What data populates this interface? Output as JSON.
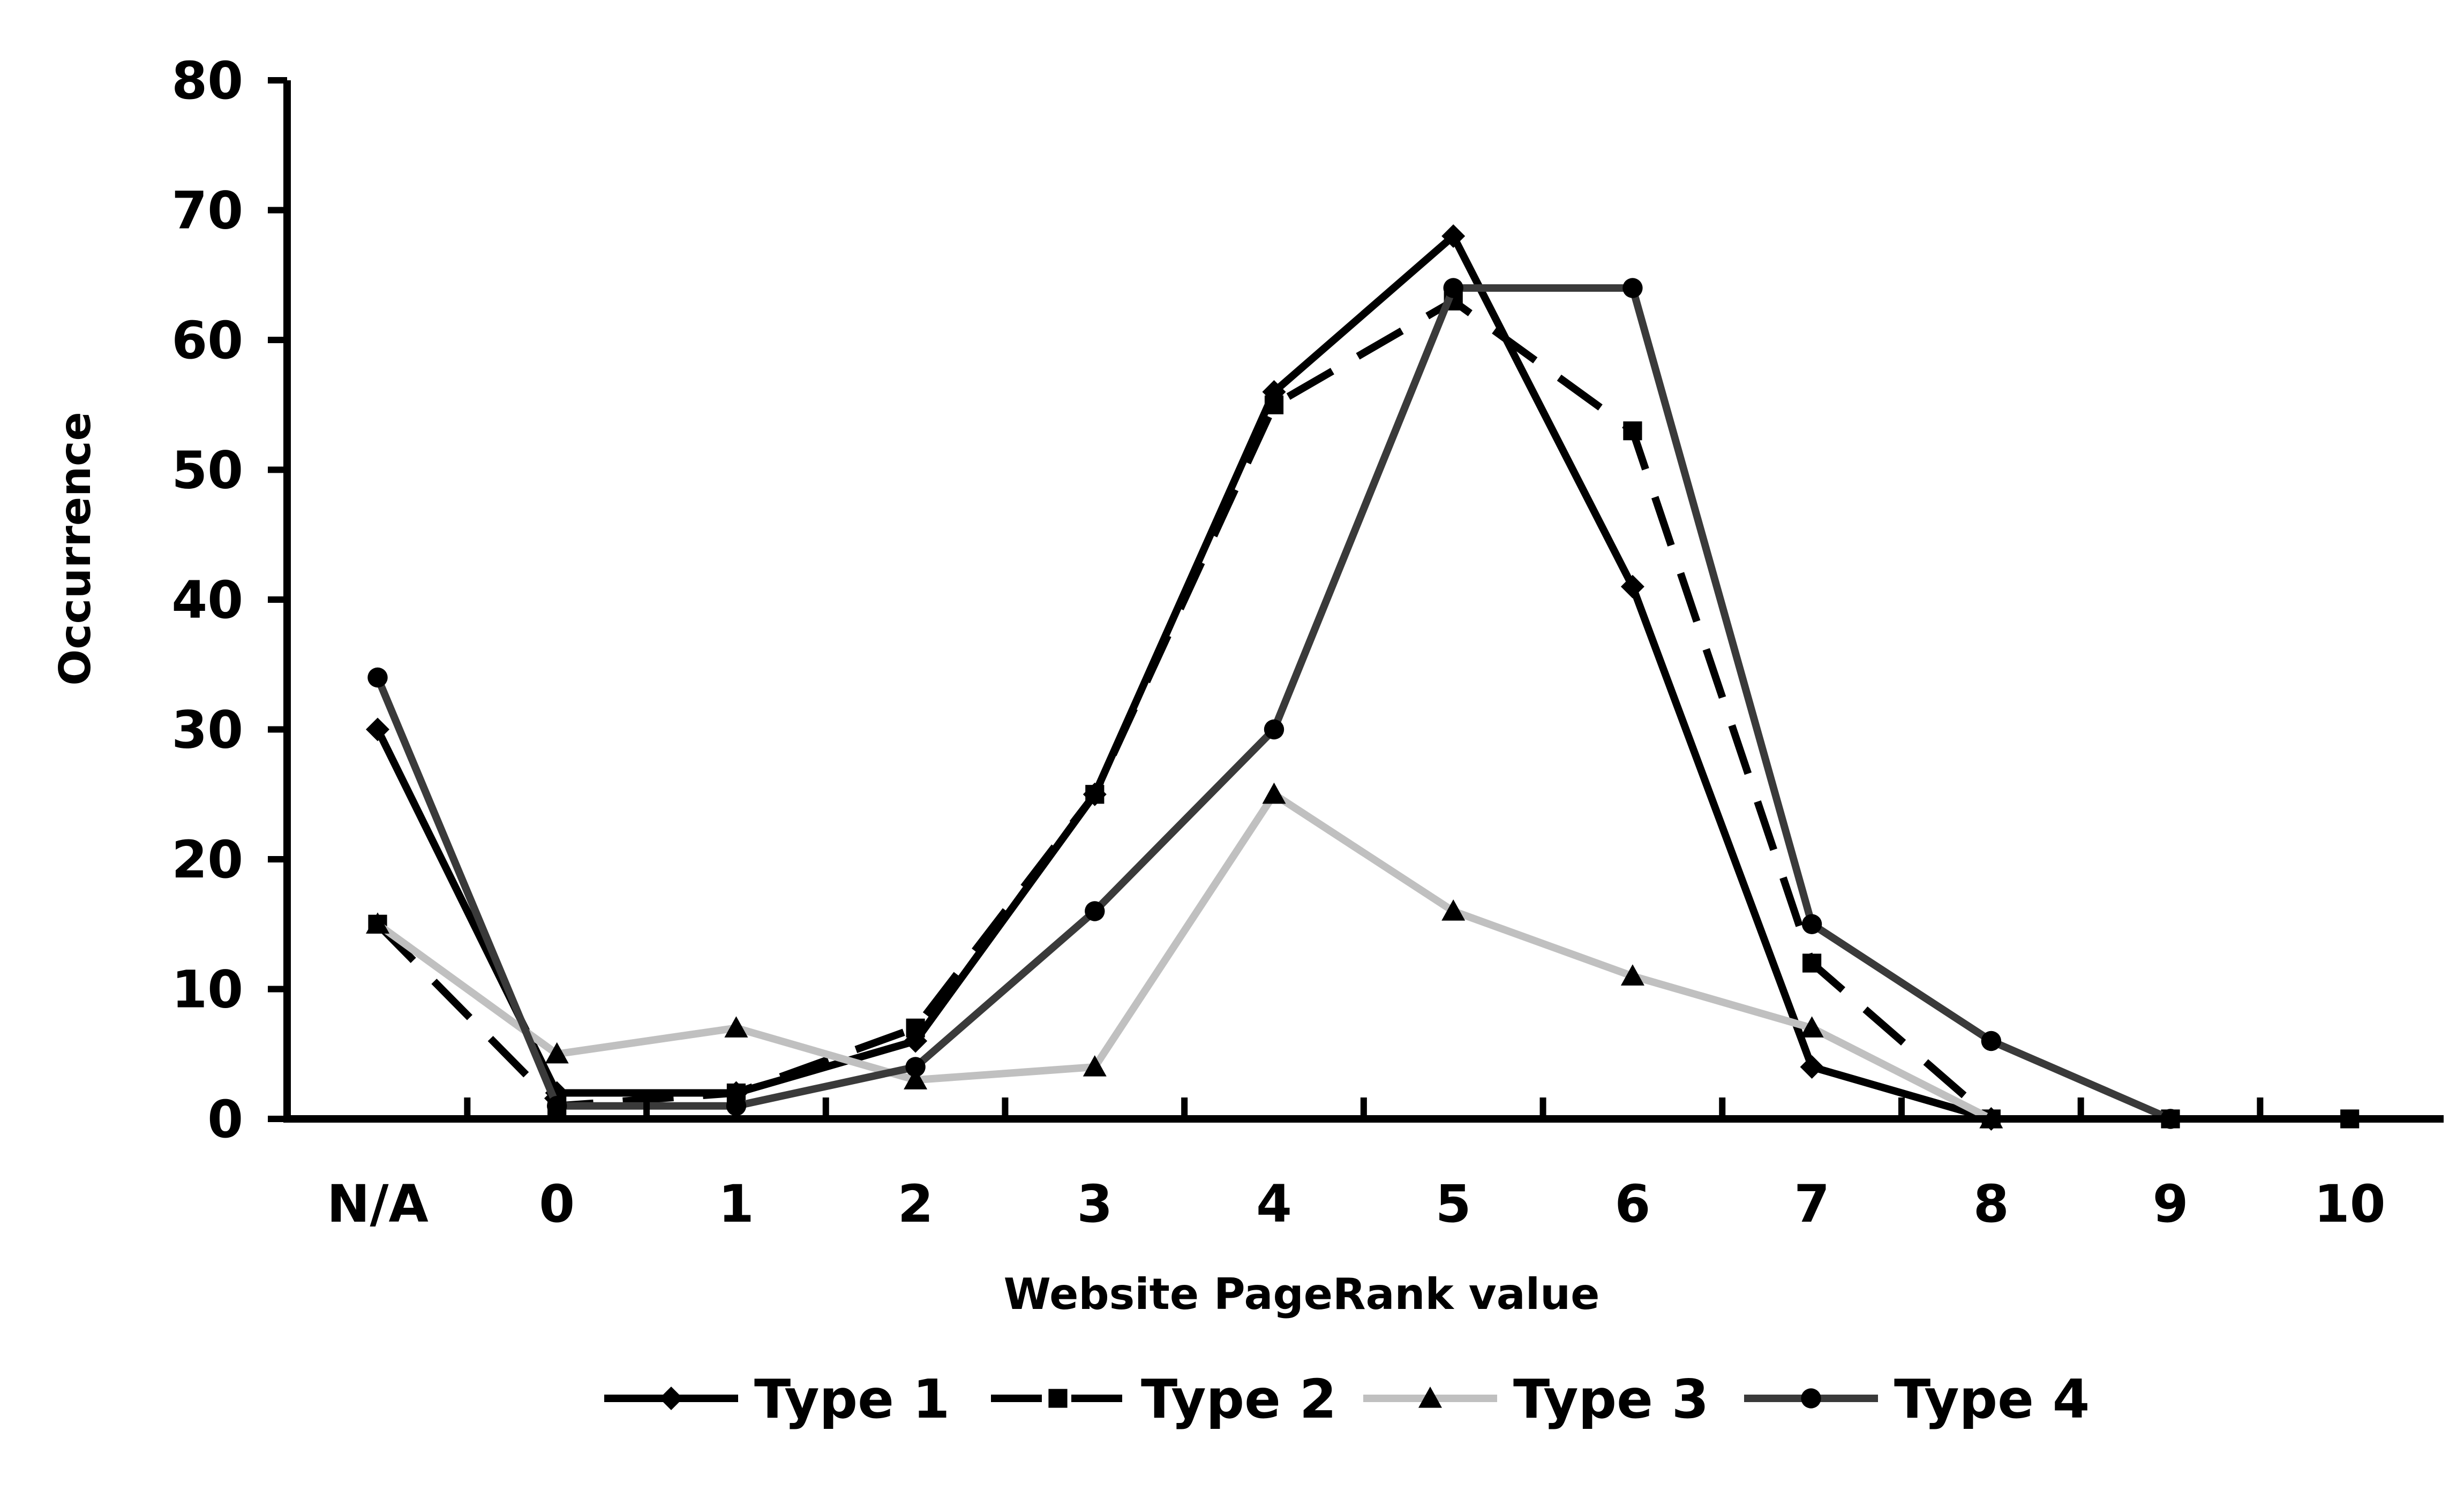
{
  "chart_data": {
    "type": "line",
    "title": "",
    "xlabel": "Website PageRank value",
    "ylabel": "Occurrence",
    "categories": [
      "N/A",
      "0",
      "1",
      "2",
      "3",
      "4",
      "5",
      "6",
      "7",
      "8",
      "9",
      "10"
    ],
    "yticks": [
      "0",
      "10",
      "20",
      "30",
      "40",
      "50",
      "60",
      "70",
      "80"
    ],
    "ylim": [
      0,
      80
    ],
    "grid": false,
    "legend_position": "bottom",
    "series": [
      {
        "name": "Type 1",
        "values": [
          30,
          2,
          2,
          6,
          25,
          56,
          68,
          41,
          4,
          0,
          null,
          null
        ],
        "color": "#000000",
        "dash": "solid",
        "marker": "diamond"
      },
      {
        "name": "Type 2",
        "values": [
          15,
          1,
          2,
          7,
          25,
          55,
          63,
          53,
          12,
          0,
          0,
          0
        ],
        "color": "#000000",
        "dash": "dashed",
        "marker": "square"
      },
      {
        "name": "Type 3",
        "values": [
          15,
          5,
          7,
          3,
          4,
          25,
          16,
          11,
          7,
          0,
          null,
          null
        ],
        "color": "#c0c0c0",
        "dash": "solid",
        "marker": "triangle"
      },
      {
        "name": "Type 4",
        "values": [
          34,
          1,
          1,
          4,
          16,
          30,
          64,
          64,
          15,
          6,
          0,
          null
        ],
        "color": "#3a3a3a",
        "dash": "solid",
        "marker": "circle"
      }
    ]
  }
}
